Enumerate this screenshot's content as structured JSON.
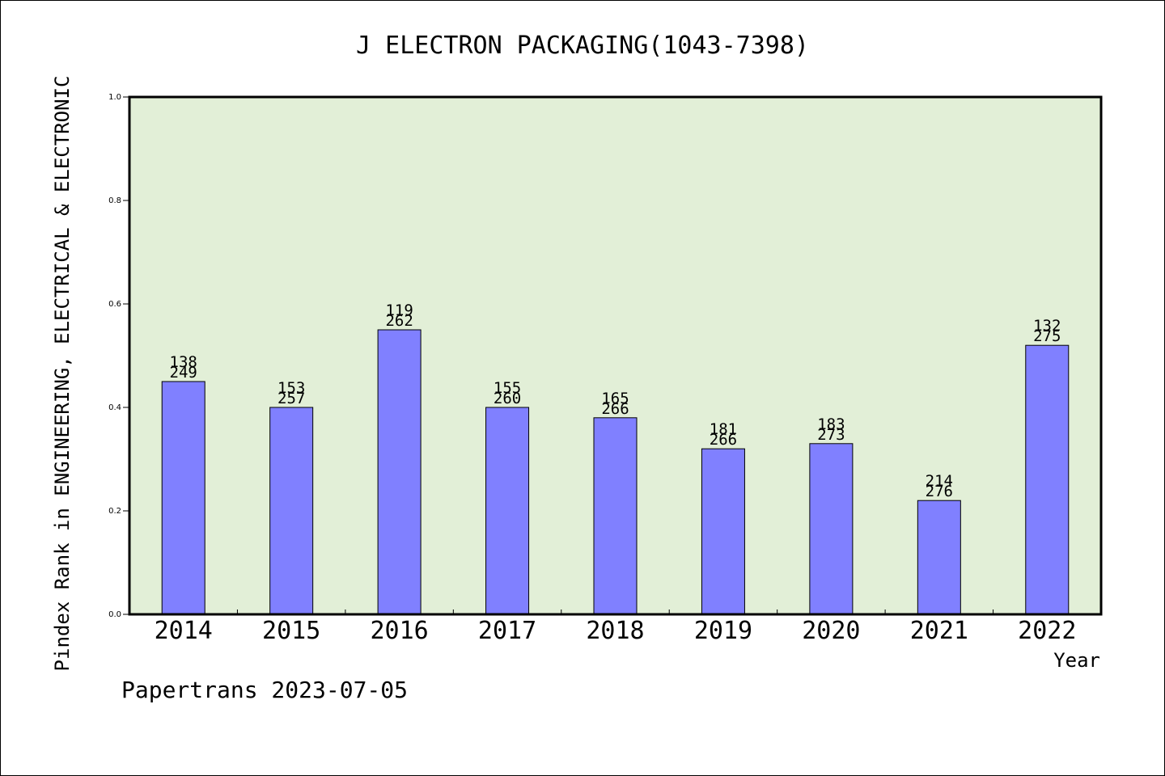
{
  "chart_data": {
    "type": "bar",
    "title": "J ELECTRON PACKAGING(1043-7398)",
    "xlabel": "Year",
    "ylabel": "Pindex Rank in ENGINEERING, ELECTRICAL & ELECTRONIC",
    "footer": "Papertrans 2023-07-05",
    "categories": [
      "2014",
      "2015",
      "2016",
      "2017",
      "2018",
      "2019",
      "2020",
      "2021",
      "2022"
    ],
    "values": [
      0.45,
      0.4,
      0.55,
      0.4,
      0.38,
      0.32,
      0.33,
      0.22,
      0.52
    ],
    "rank_labels": [
      "138",
      "153",
      "119",
      "155",
      "165",
      "181",
      "183",
      "214",
      "132"
    ],
    "total_labels": [
      "249",
      "257",
      "262",
      "260",
      "266",
      "266",
      "273",
      "276",
      "275"
    ],
    "ylim": [
      0,
      1.0
    ],
    "yticks": [
      "0.0",
      "0.2",
      "0.4",
      "0.6",
      "0.8",
      "1.0"
    ],
    "grid": false,
    "colors": {
      "plot_bg": "#e2efd7",
      "bar": "#8080ff",
      "axis": "#000000"
    }
  }
}
